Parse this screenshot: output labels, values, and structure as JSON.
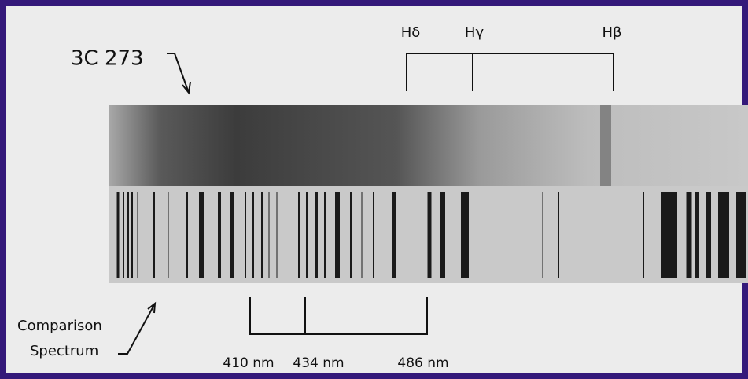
{
  "object_label": "3C 273",
  "shifted_lines": [
    {
      "label": "Hδ"
    },
    {
      "label": "Hγ"
    },
    {
      "label": "Hβ"
    }
  ],
  "comparison_label": [
    "Comparison",
    "Spectrum"
  ],
  "comparison_lines": [
    {
      "label": "410 nm"
    },
    {
      "label": "434 nm"
    },
    {
      "label": "486 nm"
    }
  ]
}
